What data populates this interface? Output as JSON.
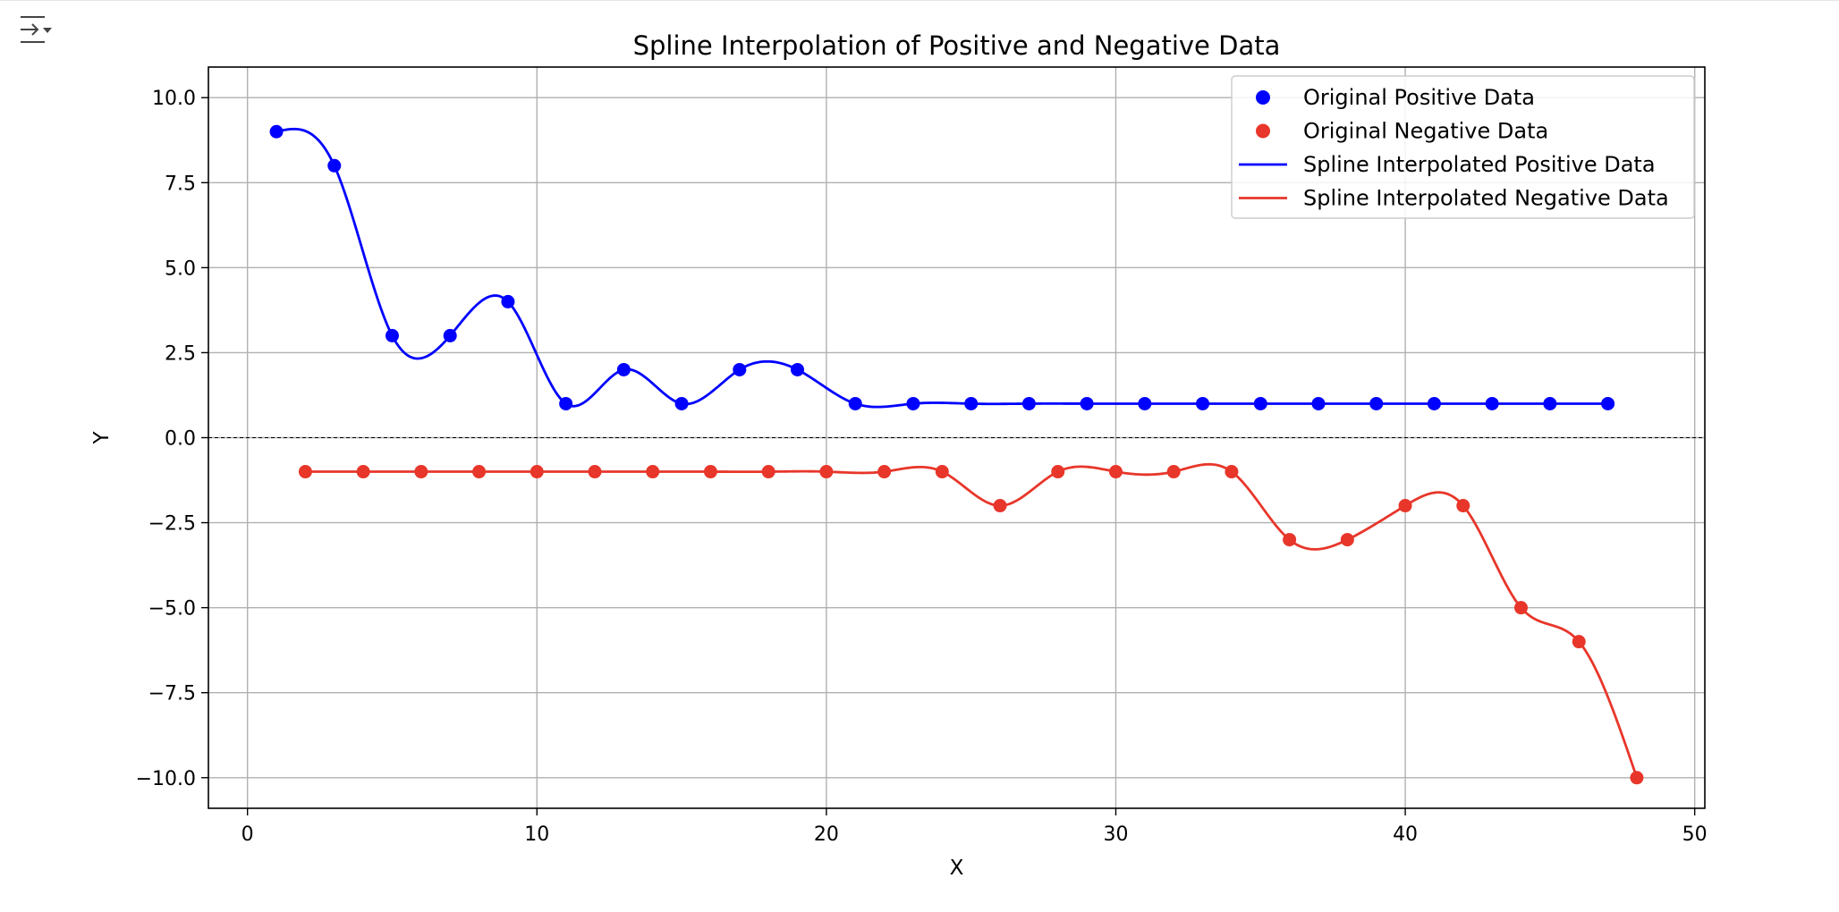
{
  "chart_data": {
    "type": "line",
    "title": "Spline Interpolation of Positive and Negative Data",
    "xlabel": "X",
    "ylabel": "Y",
    "xlim": [
      -1.35,
      50.35
    ],
    "ylim": [
      -10.9,
      10.9
    ],
    "xticks": [
      0,
      10,
      20,
      30,
      40,
      50
    ],
    "yticks": [
      10.0,
      7.5,
      5.0,
      2.5,
      0.0,
      -2.5,
      -5.0,
      -7.5,
      -10.0
    ],
    "xtick_labels": [
      "0",
      "10",
      "20",
      "30",
      "40",
      "50"
    ],
    "ytick_labels": [
      "10.0",
      "7.5",
      "5.0",
      "2.5",
      "0.0",
      "−2.5",
      "−5.0",
      "−7.5",
      "−10.0"
    ],
    "grid": true,
    "zero_line": true,
    "legend_position": "top-right",
    "series": [
      {
        "name": "Original Positive Data",
        "kind": "scatter",
        "color": "#0000ff",
        "x": [
          1,
          3,
          5,
          7,
          9,
          11,
          13,
          15,
          17,
          19,
          21,
          23,
          25,
          27,
          29,
          31,
          33,
          35,
          37,
          39,
          41,
          43,
          45,
          47
        ],
        "y": [
          9,
          8,
          3,
          3,
          4,
          1,
          2,
          1,
          2,
          2,
          1,
          1,
          1,
          1,
          1,
          1,
          1,
          1,
          1,
          1,
          1,
          1,
          1,
          1
        ]
      },
      {
        "name": "Original Negative Data",
        "kind": "scatter",
        "color": "#e8362a",
        "x": [
          2,
          4,
          6,
          8,
          10,
          12,
          14,
          16,
          18,
          20,
          22,
          24,
          26,
          28,
          30,
          32,
          34,
          36,
          38,
          40,
          42,
          44,
          46,
          48
        ],
        "y": [
          -1,
          -1,
          -1,
          -1,
          -1,
          -1,
          -1,
          -1,
          -1,
          -1,
          -1,
          -1,
          -2,
          -1,
          -1,
          -1,
          -1,
          -3,
          -3,
          -2,
          -2,
          -5,
          -6,
          -10
        ]
      },
      {
        "name": "Spline Interpolated Positive Data",
        "kind": "line",
        "color": "#0000ff",
        "source": "Original Positive Data"
      },
      {
        "name": "Spline Interpolated Negative Data",
        "kind": "line",
        "color": "#e8362a",
        "source": "Original Negative Data"
      }
    ]
  },
  "icons": {
    "toolbar": "output-toggle-icon"
  }
}
